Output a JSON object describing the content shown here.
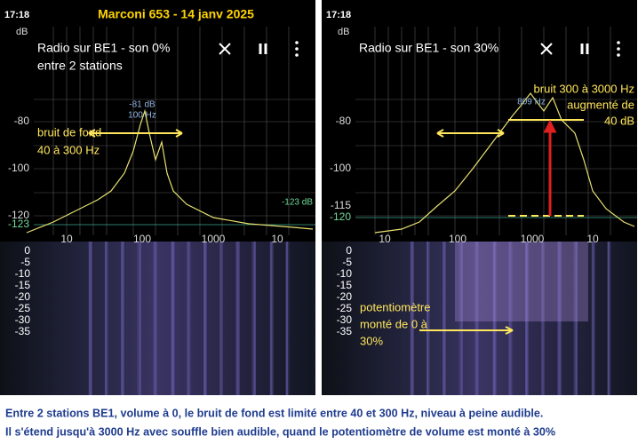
{
  "header": {
    "title": "Marconi 653 - 14 janv 2025"
  },
  "panels": [
    {
      "time": "17:18",
      "unit": "dB",
      "title": "Radio sur BE1 - son 0%",
      "subtitle": "entre 2 stations",
      "y_labels": [
        -80,
        -100,
        -120,
        -123
      ],
      "x_labels": [
        10,
        100,
        1000,
        10
      ],
      "peak_label": [
        "-81 dB",
        "100 Hz"
      ],
      "side_label": "-123 dB",
      "annotation": [
        "bruit de fond",
        "40 à 300 Hz"
      ],
      "spectrogram_labels": [
        0,
        -5,
        -10,
        -15,
        -20,
        -25,
        -30,
        -35
      ]
    },
    {
      "time": "17:18",
      "unit": "dB",
      "title": "Radio sur BE1 - son 30%",
      "y_labels": [
        -80,
        -100,
        -115,
        -120
      ],
      "x_labels": [
        10,
        100,
        1000,
        10
      ],
      "peak_label": [
        "809 Hz"
      ],
      "annotation": [
        "bruit 300 à 3000 Hz",
        "augmenté de",
        "40 dB"
      ],
      "spectrogram_labels": [
        0,
        -5,
        -10,
        -15,
        -20,
        -25,
        -30,
        -35
      ],
      "spectrogram_annotation": [
        "potentiomètre",
        "monté de 0 à",
        "30%"
      ]
    }
  ],
  "caption": [
    "Entre 2 stations BE1, volume à 0, le bruit de fond est limité entre 40 et 300 Hz, niveau à peine audible.",
    "Il s'étend jusqu'à 3000 Hz avec souffle bien audible, quand le potentiomètre de volume est monté à 30%"
  ]
}
